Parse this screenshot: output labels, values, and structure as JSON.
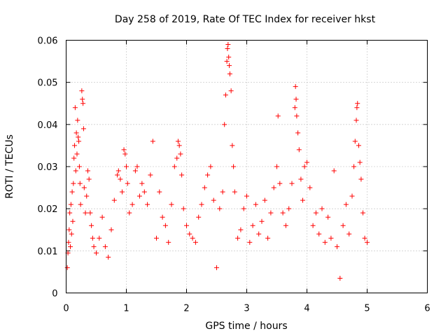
{
  "chart_data": {
    "type": "scatter",
    "title": "Day 258 of 2019, Rate Of TEC Index for receiver hkst",
    "xlabel": "GPS time / hours",
    "ylabel": "ROTI / TECUs",
    "xlim": [
      0,
      6
    ],
    "ylim": [
      0,
      0.06
    ],
    "x_ticks": [
      "0",
      "1",
      "2",
      "3",
      "4",
      "5",
      "6"
    ],
    "y_ticks": [
      "0",
      "0.01",
      "0.02",
      "0.03",
      "0.04",
      "0.05",
      "0.06"
    ],
    "grid": true,
    "marker": "+",
    "color": "#ff0000",
    "series": [
      {
        "name": "ROTI",
        "points": [
          [
            0.02,
            0.006
          ],
          [
            0.03,
            0.0095
          ],
          [
            0.04,
            0.012
          ],
          [
            0.05,
            0.015
          ],
          [
            0.06,
            0.019
          ],
          [
            0.07,
            0.011
          ],
          [
            0.08,
            0.021
          ],
          [
            0.09,
            0.014
          ],
          [
            0.1,
            0.024
          ],
          [
            0.11,
            0.017
          ],
          [
            0.12,
            0.026
          ],
          [
            0.13,
            0.032
          ],
          [
            0.14,
            0.035
          ],
          [
            0.15,
            0.044
          ],
          [
            0.16,
            0.029
          ],
          [
            0.17,
            0.038
          ],
          [
            0.18,
            0.033
          ],
          [
            0.19,
            0.041
          ],
          [
            0.2,
            0.037
          ],
          [
            0.21,
            0.036
          ],
          [
            0.22,
            0.03
          ],
          [
            0.23,
            0.026
          ],
          [
            0.24,
            0.021
          ],
          [
            0.26,
            0.048
          ],
          [
            0.27,
            0.046
          ],
          [
            0.28,
            0.045
          ],
          [
            0.29,
            0.039
          ],
          [
            0.3,
            0.025
          ],
          [
            0.32,
            0.019
          ],
          [
            0.34,
            0.023
          ],
          [
            0.36,
            0.029
          ],
          [
            0.38,
            0.027
          ],
          [
            0.4,
            0.019
          ],
          [
            0.42,
            0.016
          ],
          [
            0.44,
            0.013
          ],
          [
            0.46,
            0.011
          ],
          [
            0.5,
            0.0095
          ],
          [
            0.55,
            0.013
          ],
          [
            0.6,
            0.018
          ],
          [
            0.65,
            0.011
          ],
          [
            0.7,
            0.0085
          ],
          [
            0.75,
            0.015
          ],
          [
            0.8,
            0.022
          ],
          [
            0.85,
            0.028
          ],
          [
            0.87,
            0.029
          ],
          [
            0.9,
            0.027
          ],
          [
            0.93,
            0.024
          ],
          [
            0.96,
            0.034
          ],
          [
            0.98,
            0.033
          ],
          [
            1.0,
            0.03
          ],
          [
            1.02,
            0.026
          ],
          [
            1.05,
            0.019
          ],
          [
            1.1,
            0.021
          ],
          [
            1.15,
            0.029
          ],
          [
            1.18,
            0.03
          ],
          [
            1.22,
            0.023
          ],
          [
            1.26,
            0.026
          ],
          [
            1.3,
            0.024
          ],
          [
            1.35,
            0.021
          ],
          [
            1.4,
            0.028
          ],
          [
            1.44,
            0.036
          ],
          [
            1.5,
            0.013
          ],
          [
            1.55,
            0.024
          ],
          [
            1.6,
            0.018
          ],
          [
            1.65,
            0.016
          ],
          [
            1.7,
            0.012
          ],
          [
            1.75,
            0.021
          ],
          [
            1.8,
            0.03
          ],
          [
            1.84,
            0.032
          ],
          [
            1.86,
            0.036
          ],
          [
            1.88,
            0.035
          ],
          [
            1.9,
            0.033
          ],
          [
            1.92,
            0.028
          ],
          [
            1.95,
            0.02
          ],
          [
            2.0,
            0.016
          ],
          [
            2.05,
            0.014
          ],
          [
            2.1,
            0.013
          ],
          [
            2.15,
            0.012
          ],
          [
            2.2,
            0.018
          ],
          [
            2.25,
            0.021
          ],
          [
            2.3,
            0.025
          ],
          [
            2.35,
            0.028
          ],
          [
            2.4,
            0.03
          ],
          [
            2.45,
            0.022
          ],
          [
            2.5,
            0.006
          ],
          [
            2.55,
            0.02
          ],
          [
            2.6,
            0.024
          ],
          [
            2.63,
            0.04
          ],
          [
            2.65,
            0.047
          ],
          [
            2.67,
            0.055
          ],
          [
            2.68,
            0.058
          ],
          [
            2.69,
            0.059
          ],
          [
            2.7,
            0.056
          ],
          [
            2.71,
            0.054
          ],
          [
            2.72,
            0.052
          ],
          [
            2.74,
            0.048
          ],
          [
            2.76,
            0.035
          ],
          [
            2.78,
            0.03
          ],
          [
            2.8,
            0.024
          ],
          [
            2.85,
            0.013
          ],
          [
            2.9,
            0.015
          ],
          [
            2.95,
            0.02
          ],
          [
            3.0,
            0.023
          ],
          [
            3.05,
            0.012
          ],
          [
            3.1,
            0.016
          ],
          [
            3.15,
            0.021
          ],
          [
            3.2,
            0.014
          ],
          [
            3.25,
            0.017
          ],
          [
            3.3,
            0.022
          ],
          [
            3.35,
            0.013
          ],
          [
            3.4,
            0.019
          ],
          [
            3.45,
            0.025
          ],
          [
            3.5,
            0.03
          ],
          [
            3.52,
            0.042
          ],
          [
            3.55,
            0.026
          ],
          [
            3.6,
            0.019
          ],
          [
            3.65,
            0.016
          ],
          [
            3.7,
            0.02
          ],
          [
            3.75,
            0.026
          ],
          [
            3.8,
            0.044
          ],
          [
            3.81,
            0.049
          ],
          [
            3.82,
            0.046
          ],
          [
            3.83,
            0.042
          ],
          [
            3.85,
            0.038
          ],
          [
            3.87,
            0.034
          ],
          [
            3.9,
            0.027
          ],
          [
            3.93,
            0.022
          ],
          [
            3.96,
            0.03
          ],
          [
            4.0,
            0.031
          ],
          [
            4.05,
            0.025
          ],
          [
            4.1,
            0.016
          ],
          [
            4.15,
            0.019
          ],
          [
            4.2,
            0.014
          ],
          [
            4.25,
            0.02
          ],
          [
            4.3,
            0.012
          ],
          [
            4.35,
            0.018
          ],
          [
            4.4,
            0.013
          ],
          [
            4.45,
            0.029
          ],
          [
            4.5,
            0.011
          ],
          [
            4.55,
            0.0035
          ],
          [
            4.6,
            0.016
          ],
          [
            4.65,
            0.021
          ],
          [
            4.7,
            0.014
          ],
          [
            4.75,
            0.023
          ],
          [
            4.78,
            0.03
          ],
          [
            4.8,
            0.036
          ],
          [
            4.82,
            0.041
          ],
          [
            4.83,
            0.044
          ],
          [
            4.84,
            0.045
          ],
          [
            4.86,
            0.035
          ],
          [
            4.88,
            0.031
          ],
          [
            4.9,
            0.027
          ],
          [
            4.93,
            0.019
          ],
          [
            4.96,
            0.013
          ],
          [
            5.0,
            0.012
          ]
        ]
      }
    ]
  }
}
